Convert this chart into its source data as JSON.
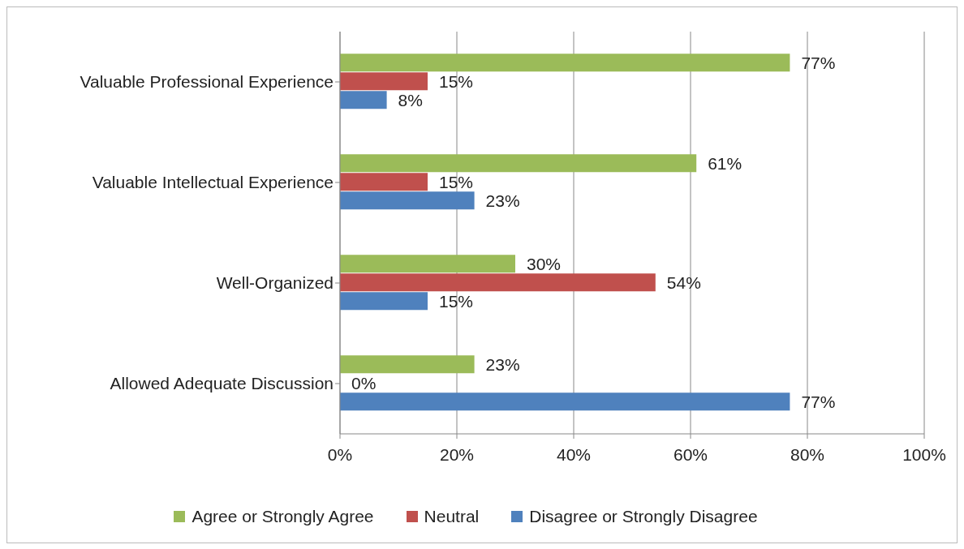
{
  "chart_data": {
    "type": "bar",
    "orientation": "horizontal",
    "categories": [
      "Valuable Professional  Experience",
      "Valuable Intellectual Experience",
      "Well-Organized",
      "Allowed Adequate Discussion"
    ],
    "series": [
      {
        "name": "Agree or Strongly Agree",
        "color": "#9bbb59",
        "values": [
          77,
          61,
          30,
          23
        ],
        "value_labels": [
          "77%",
          "61%",
          "30%",
          "23%"
        ]
      },
      {
        "name": "Neutral",
        "color": "#c0504d",
        "values": [
          15,
          15,
          54,
          0
        ],
        "value_labels": [
          "15%",
          "15%",
          "54%",
          "0%"
        ]
      },
      {
        "name": "Disagree or Strongly Disagree",
        "color": "#4f81bd",
        "values": [
          8,
          23,
          15,
          77
        ],
        "value_labels": [
          "8%",
          "23%",
          "15%",
          "77%"
        ]
      }
    ],
    "xlim": [
      0,
      100
    ],
    "xticks": [
      {
        "value": 0,
        "label": "0%"
      },
      {
        "value": 20,
        "label": "20%"
      },
      {
        "value": 40,
        "label": "40%"
      },
      {
        "value": 60,
        "label": "60%"
      },
      {
        "value": 80,
        "label": "80%"
      },
      {
        "value": 100,
        "label": "100%"
      }
    ],
    "grid": "x",
    "legend": "bottom"
  }
}
